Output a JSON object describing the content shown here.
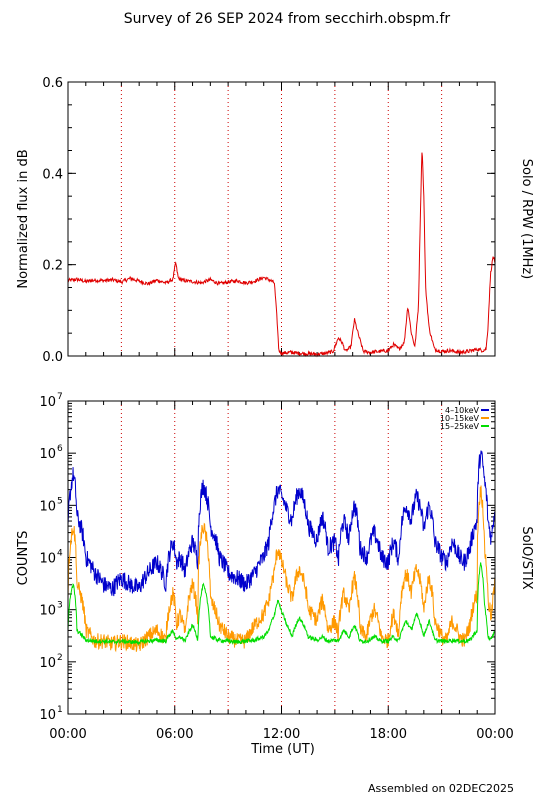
{
  "title": "Survey of 26 SEP 2024 from secchirh.obspm.fr",
  "footer": "Assembled on 02DEC2025",
  "colors": {
    "rpw": "#e00000",
    "band1": "#0000cc",
    "band2": "#ff9900",
    "band3": "#00dd00",
    "grid": "#cc0000",
    "axis": "#000000"
  },
  "chart_data": [
    {
      "type": "line",
      "title": "",
      "xlabel": "",
      "ylabel": "Normalized flux in dB",
      "side_label": "Solo / RPW (1MHz)",
      "xlim": [
        0,
        24
      ],
      "ylim": [
        0,
        0.6
      ],
      "yticks": [
        0.0,
        0.2,
        0.4,
        0.6
      ],
      "ytick_labels": [
        "0.0",
        "0.2",
        "0.4",
        "0.6"
      ],
      "vertical_grid_hours": [
        3,
        6,
        9,
        12,
        15,
        18,
        21
      ],
      "series": [
        {
          "x": [
            0,
            0.5,
            1,
            1.5,
            2,
            2.5,
            3,
            3.5,
            4,
            4.5,
            5,
            5.5,
            5.9,
            6.05,
            6.2,
            6.5,
            7,
            7.5,
            8,
            8.5,
            9,
            9.5,
            10,
            10.5,
            11,
            11.4,
            11.6,
            11.75,
            11.85,
            12,
            12.5,
            13,
            13.5,
            14,
            14.5,
            14.9,
            15.2,
            15.4,
            15.6,
            15.9,
            16.1,
            16.3,
            16.6,
            17,
            17.5,
            18,
            18.3,
            18.6,
            18.9,
            19.1,
            19.3,
            19.5,
            19.7,
            19.8,
            19.9,
            20.0,
            20.1,
            20.3,
            20.6,
            21,
            21.5,
            22,
            22.5,
            23,
            23.3,
            23.5,
            23.6,
            23.75,
            23.9,
            24
          ],
          "values": [
            0.165,
            0.168,
            0.163,
            0.166,
            0.165,
            0.167,
            0.162,
            0.17,
            0.164,
            0.158,
            0.166,
            0.16,
            0.168,
            0.205,
            0.17,
            0.165,
            0.163,
            0.16,
            0.167,
            0.158,
            0.162,
            0.165,
            0.16,
            0.164,
            0.172,
            0.165,
            0.16,
            0.08,
            0.012,
            0.006,
            0.008,
            0.006,
            0.005,
            0.004,
            0.006,
            0.01,
            0.04,
            0.03,
            0.01,
            0.02,
            0.08,
            0.05,
            0.01,
            0.008,
            0.01,
            0.012,
            0.025,
            0.015,
            0.03,
            0.11,
            0.05,
            0.02,
            0.11,
            0.3,
            0.46,
            0.35,
            0.15,
            0.06,
            0.015,
            0.01,
            0.012,
            0.008,
            0.01,
            0.015,
            0.012,
            0.015,
            0.06,
            0.18,
            0.22,
            0.2
          ]
        }
      ]
    },
    {
      "type": "line",
      "title": "",
      "xlabel": "Time (UT)",
      "ylabel": "COUNTS",
      "side_label": "SolO/STIX",
      "xlim": [
        0,
        24
      ],
      "ylim": [
        10,
        10000000
      ],
      "yscale": "log",
      "ytick_exponents": [
        1,
        2,
        3,
        4,
        5,
        6,
        7
      ],
      "ytick_base": "10",
      "xticks": [
        0,
        6,
        12,
        18,
        24
      ],
      "xtick_labels": [
        "00:00",
        "06:00",
        "12:00",
        "18:00",
        "00:00"
      ],
      "vertical_grid_hours": [
        3,
        6,
        9,
        12,
        15,
        18,
        21
      ],
      "legend_position": "top-right",
      "series": [
        {
          "name": "4–10keV",
          "x": [
            0,
            0.15,
            0.3,
            0.5,
            1,
            1.5,
            2,
            2.5,
            3,
            3.5,
            4,
            4.5,
            5,
            5.5,
            5.9,
            6.1,
            6.3,
            6.6,
            7,
            7.3,
            7.6,
            8,
            8.5,
            9,
            9.5,
            10,
            10.5,
            11,
            11.3,
            11.6,
            11.8,
            12,
            12.3,
            12.6,
            13,
            13.5,
            14,
            14.3,
            14.6,
            15,
            15.2,
            15.5,
            15.8,
            16.1,
            16.4,
            16.8,
            17.2,
            17.6,
            18,
            18.3,
            18.6,
            19,
            19.3,
            19.6,
            20,
            20.3,
            20.6,
            21,
            21.3,
            21.6,
            22,
            22.3,
            22.6,
            23,
            23.2,
            23.4,
            23.6,
            23.8,
            24
          ],
          "values": [
            30000,
            200000,
            400000,
            60000,
            10000,
            5000,
            3000,
            2500,
            4000,
            3000,
            2500,
            5000,
            8000,
            3000,
            20000,
            8000,
            10000,
            5000,
            20000,
            8000,
            250000,
            40000,
            10000,
            5000,
            4000,
            3000,
            5000,
            10000,
            20000,
            100000,
            200000,
            150000,
            80000,
            50000,
            200000,
            40000,
            20000,
            60000,
            15000,
            20000,
            8000,
            50000,
            20000,
            100000,
            15000,
            10000,
            30000,
            10000,
            8000,
            20000,
            8000,
            100000,
            50000,
            150000,
            30000,
            100000,
            20000,
            10000,
            8000,
            20000,
            10000,
            8000,
            15000,
            50000,
            1000000,
            300000,
            50000,
            20000,
            80000
          ]
        },
        {
          "name": "10–15keV",
          "x": [
            0,
            0.15,
            0.3,
            0.5,
            1,
            1.5,
            2,
            2.5,
            3,
            3.5,
            4,
            4.5,
            5,
            5.5,
            5.9,
            6.1,
            6.3,
            6.6,
            7,
            7.3,
            7.6,
            8,
            8.5,
            9,
            9.5,
            10,
            10.5,
            11,
            11.3,
            11.6,
            11.8,
            12,
            12.3,
            12.6,
            13,
            13.5,
            14,
            14.3,
            14.6,
            15,
            15.2,
            15.5,
            15.8,
            16.1,
            16.4,
            16.8,
            17.2,
            17.6,
            18,
            18.3,
            18.6,
            19,
            19.3,
            19.6,
            20,
            20.3,
            20.6,
            21,
            21.3,
            21.6,
            22,
            22.3,
            22.6,
            23,
            23.2,
            23.4,
            23.6,
            23.8,
            24
          ],
          "values": [
            2000,
            20000,
            40000,
            3000,
            400,
            250,
            250,
            220,
            250,
            230,
            200,
            300,
            400,
            250,
            2000,
            500,
            800,
            300,
            3000,
            600,
            40000,
            1500,
            500,
            300,
            250,
            250,
            500,
            800,
            1500,
            5000,
            15000,
            8000,
            3000,
            1500,
            6000,
            1000,
            600,
            1500,
            400,
            600,
            300,
            2000,
            800,
            4000,
            400,
            300,
            1000,
            300,
            250,
            800,
            300,
            5000,
            2000,
            6000,
            800,
            4000,
            600,
            300,
            250,
            600,
            300,
            250,
            500,
            2000,
            200000,
            15000,
            1500,
            600,
            3000
          ]
        },
        {
          "name": "15–25keV",
          "x": [
            0,
            0.15,
            0.3,
            0.5,
            1,
            1.5,
            2,
            2.5,
            3,
            3.5,
            4,
            4.5,
            5,
            5.5,
            5.9,
            6.1,
            6.3,
            6.6,
            7,
            7.3,
            7.6,
            8,
            8.5,
            9,
            9.5,
            10,
            10.5,
            11,
            11.3,
            11.6,
            11.8,
            12,
            12.3,
            12.6,
            13,
            13.5,
            14,
            14.3,
            14.6,
            15,
            15.2,
            15.5,
            15.8,
            16.1,
            16.4,
            16.8,
            17.2,
            17.6,
            18,
            18.3,
            18.6,
            19,
            19.3,
            19.6,
            20,
            20.3,
            20.6,
            21,
            21.3,
            21.6,
            22,
            22.3,
            22.6,
            23,
            23.2,
            23.4,
            23.6,
            23.8,
            24
          ],
          "values": [
            400,
            2000,
            3000,
            400,
            260,
            250,
            250,
            240,
            250,
            240,
            240,
            250,
            260,
            250,
            400,
            260,
            300,
            250,
            500,
            260,
            3000,
            300,
            260,
            250,
            240,
            250,
            260,
            300,
            400,
            800,
            1500,
            900,
            500,
            300,
            700,
            300,
            260,
            300,
            250,
            260,
            250,
            400,
            300,
            500,
            250,
            250,
            300,
            250,
            250,
            300,
            250,
            600,
            400,
            800,
            300,
            600,
            260,
            250,
            250,
            260,
            250,
            250,
            260,
            400,
            8000,
            1200,
            300,
            260,
            400
          ]
        }
      ]
    }
  ]
}
